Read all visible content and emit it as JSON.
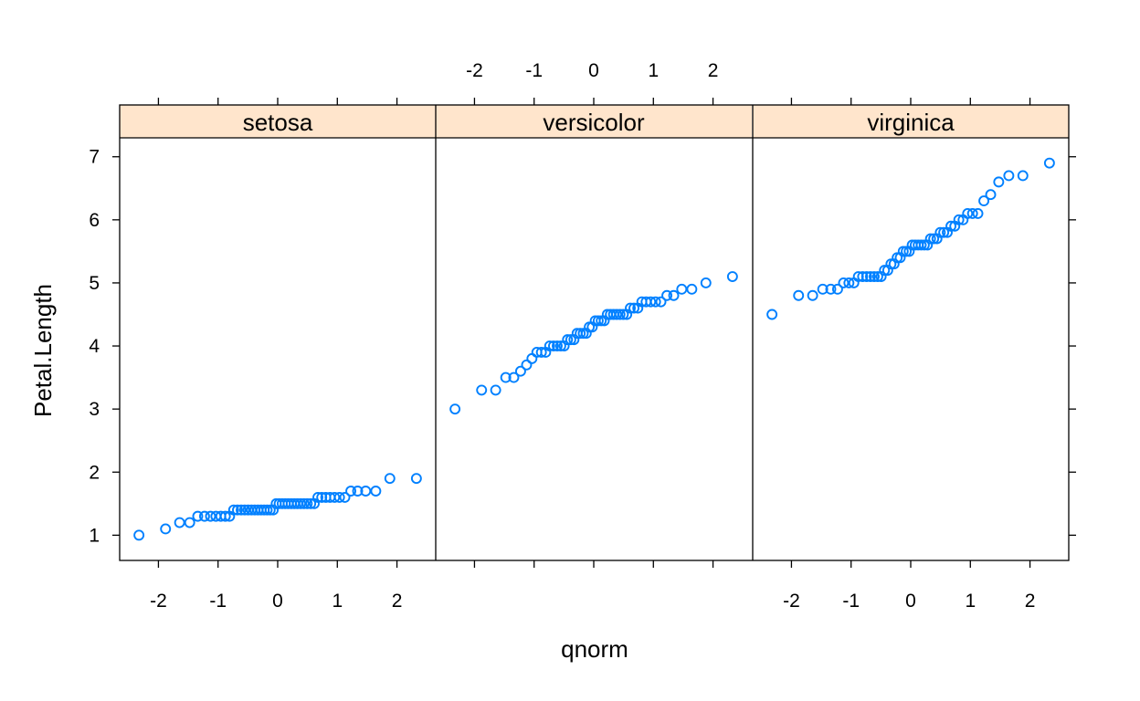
{
  "chart_data": {
    "type": "scatter",
    "xlabel": "qnorm",
    "ylabel": "Petal.Length",
    "xlim": [
      -2.65,
      2.65
    ],
    "ylim": [
      0.6,
      7.3
    ],
    "x_ticks": [
      "-2",
      "-1",
      "0",
      "1",
      "2"
    ],
    "y_ticks": [
      "1",
      "2",
      "3",
      "4",
      "5",
      "6",
      "7"
    ],
    "panels": [
      {
        "name": "setosa",
        "values": [
          1.0,
          1.1,
          1.2,
          1.2,
          1.3,
          1.3,
          1.3,
          1.3,
          1.3,
          1.3,
          1.3,
          1.4,
          1.4,
          1.4,
          1.4,
          1.4,
          1.4,
          1.4,
          1.4,
          1.4,
          1.4,
          1.4,
          1.4,
          1.4,
          1.5,
          1.5,
          1.5,
          1.5,
          1.5,
          1.5,
          1.5,
          1.5,
          1.5,
          1.5,
          1.5,
          1.5,
          1.5,
          1.6,
          1.6,
          1.6,
          1.6,
          1.6,
          1.6,
          1.6,
          1.7,
          1.7,
          1.7,
          1.7,
          1.9,
          1.9
        ]
      },
      {
        "name": "versicolor",
        "values": [
          3.0,
          3.3,
          3.3,
          3.5,
          3.5,
          3.6,
          3.7,
          3.8,
          3.9,
          3.9,
          3.9,
          4.0,
          4.0,
          4.0,
          4.0,
          4.0,
          4.1,
          4.1,
          4.1,
          4.2,
          4.2,
          4.2,
          4.2,
          4.3,
          4.3,
          4.4,
          4.4,
          4.4,
          4.4,
          4.5,
          4.5,
          4.5,
          4.5,
          4.5,
          4.5,
          4.5,
          4.6,
          4.6,
          4.6,
          4.7,
          4.7,
          4.7,
          4.7,
          4.7,
          4.8,
          4.8,
          4.9,
          4.9,
          5.0,
          5.1
        ]
      },
      {
        "name": "virginica",
        "values": [
          4.5,
          4.8,
          4.8,
          4.9,
          4.9,
          4.9,
          5.0,
          5.0,
          5.0,
          5.1,
          5.1,
          5.1,
          5.1,
          5.1,
          5.1,
          5.1,
          5.2,
          5.2,
          5.3,
          5.3,
          5.4,
          5.4,
          5.5,
          5.5,
          5.5,
          5.6,
          5.6,
          5.6,
          5.6,
          5.6,
          5.6,
          5.7,
          5.7,
          5.7,
          5.8,
          5.8,
          5.8,
          5.9,
          5.9,
          6.0,
          6.0,
          6.1,
          6.1,
          6.1,
          6.3,
          6.4,
          6.6,
          6.7,
          6.7,
          6.9
        ]
      }
    ],
    "colors": {
      "point": "#0080ff",
      "strip_bg": "#ffe5cc",
      "frame": "#000000"
    },
    "grid": false,
    "legend": "none"
  }
}
